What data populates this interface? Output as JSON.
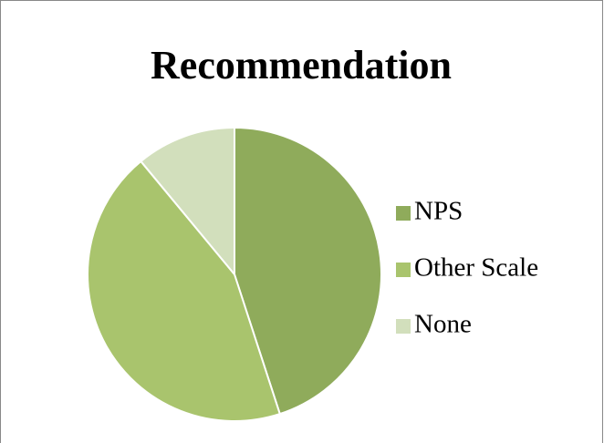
{
  "chart_data": {
    "type": "pie",
    "title": "Recommendation",
    "categories": [
      "NPS",
      "Other Scale",
      "None"
    ],
    "values": [
      45,
      44,
      11
    ],
    "colors": [
      "#8fab5b",
      "#a9c46d",
      "#d2dfbc"
    ],
    "legend": "right"
  }
}
